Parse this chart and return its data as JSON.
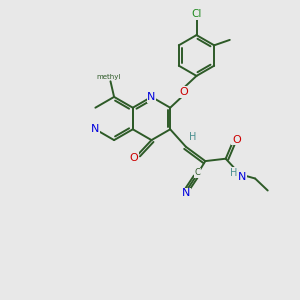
{
  "bg_color": "#e8e8e8",
  "bond_color": "#2d5a27",
  "bond_width": 1.4,
  "atom_colors": {
    "N": "#0000dd",
    "O": "#cc0000",
    "Cl": "#228B22",
    "C": "#2d5a27",
    "H": "#4a9090"
  },
  "font_size": 7.0,
  "fig_size": [
    3.0,
    3.0
  ],
  "dpi": 100
}
